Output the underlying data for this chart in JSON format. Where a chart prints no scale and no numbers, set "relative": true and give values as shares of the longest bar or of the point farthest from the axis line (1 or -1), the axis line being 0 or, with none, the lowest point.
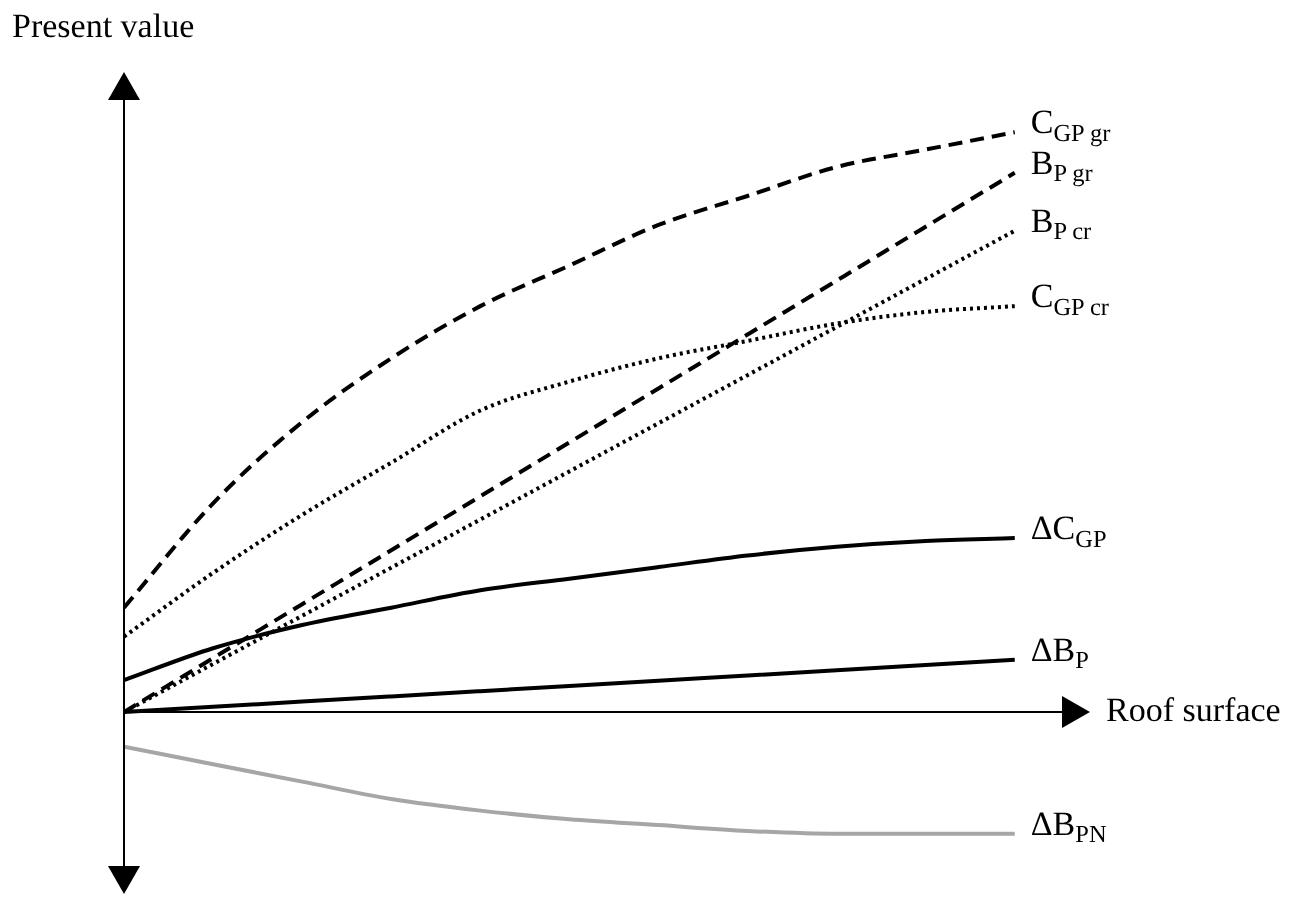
{
  "chart_data": {
    "type": "line",
    "relative": true,
    "xlabel": "Roof surface",
    "ylabel": "Present value",
    "legend": false,
    "marker": "none",
    "categories": [
      null,
      null,
      null,
      null,
      null,
      null,
      null,
      null,
      null,
      null,
      null
    ],
    "series": [
      {
        "name": "C$_{GP gr}$",
        "color": "#000000",
        "line_style": "dashed",
        "values": [
          0.18,
          0.36,
          0.5,
          0.61,
          0.7,
          0.77,
          0.84,
          0.89,
          0.94,
          0.97,
          1.0
        ]
      },
      {
        "name": "B$_{P gr}$",
        "color": "#000000",
        "line_style": "dashed",
        "values": [
          0,
          0.093,
          0.186,
          0.279,
          0.372,
          0.465,
          0.558,
          0.651,
          0.744,
          0.837,
          0.93
        ]
      },
      {
        "name": "B$_{P cr}$",
        "color": "#000000",
        "line_style": "dotted",
        "values": [
          0,
          0.083,
          0.166,
          0.249,
          0.332,
          0.415,
          0.498,
          0.581,
          0.664,
          0.747,
          0.83
        ]
      },
      {
        "name": "C$_{GP cr}$",
        "color": "#000000",
        "line_style": "dotted",
        "values": [
          0.13,
          0.24,
          0.34,
          0.43,
          0.52,
          0.57,
          0.61,
          0.64,
          0.67,
          0.69,
          0.7
        ]
      },
      {
        "name": "ΔC$_{GP}$",
        "color": "#000000",
        "line_style": "solid",
        "values": [
          0.055,
          0.11,
          0.15,
          0.18,
          0.21,
          0.23,
          0.25,
          0.27,
          0.285,
          0.295,
          0.3
        ]
      },
      {
        "name": "ΔB$_{P}$",
        "color": "#000000",
        "line_style": "solid",
        "values": [
          0,
          0.009,
          0.018,
          0.027,
          0.036,
          0.045,
          0.054,
          0.063,
          0.072,
          0.081,
          0.09
        ]
      },
      {
        "name": "ΔB$_{PN}$",
        "color": "#a6a6a6",
        "line_style": "solid",
        "values": [
          -0.06,
          -0.09,
          -0.12,
          -0.15,
          -0.17,
          -0.185,
          -0.195,
          -0.205,
          -0.21,
          -0.21,
          -0.21
        ]
      }
    ]
  }
}
